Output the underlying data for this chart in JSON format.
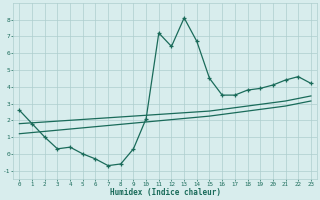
{
  "xlabel": "Humidex (Indice chaleur)",
  "x_values": [
    0,
    1,
    2,
    3,
    4,
    5,
    6,
    7,
    8,
    9,
    10,
    11,
    12,
    13,
    14,
    15,
    16,
    17,
    18,
    19,
    20,
    21,
    22,
    23
  ],
  "line1_y": [
    2.6,
    1.8,
    1.0,
    0.3,
    0.4,
    0.0,
    -0.3,
    -0.7,
    -0.6,
    0.3,
    2.1,
    7.2,
    6.4,
    8.1,
    6.7,
    4.5,
    3.5,
    3.5,
    3.8,
    3.9,
    4.1,
    4.4,
    4.6,
    4.2
  ],
  "line2_y": [
    1.8,
    1.85,
    1.9,
    1.95,
    2.0,
    2.05,
    2.1,
    2.15,
    2.2,
    2.25,
    2.3,
    2.35,
    2.4,
    2.45,
    2.5,
    2.55,
    2.65,
    2.75,
    2.85,
    2.95,
    3.05,
    3.15,
    3.3,
    3.45
  ],
  "line3_y": [
    1.2,
    1.27,
    1.34,
    1.41,
    1.48,
    1.55,
    1.62,
    1.69,
    1.76,
    1.83,
    1.9,
    1.97,
    2.04,
    2.11,
    2.18,
    2.25,
    2.35,
    2.45,
    2.55,
    2.65,
    2.75,
    2.85,
    3.0,
    3.15
  ],
  "line_color": "#1a6b5a",
  "bg_color": "#d8eded",
  "grid_color": "#aecece",
  "ylim": [
    -1.5,
    9.0
  ],
  "xlim": [
    -0.5,
    23.5
  ],
  "yticks": [
    -1,
    0,
    1,
    2,
    3,
    4,
    5,
    6,
    7,
    8
  ],
  "xticks": [
    0,
    1,
    2,
    3,
    4,
    5,
    6,
    7,
    8,
    9,
    10,
    11,
    12,
    13,
    14,
    15,
    16,
    17,
    18,
    19,
    20,
    21,
    22,
    23
  ]
}
